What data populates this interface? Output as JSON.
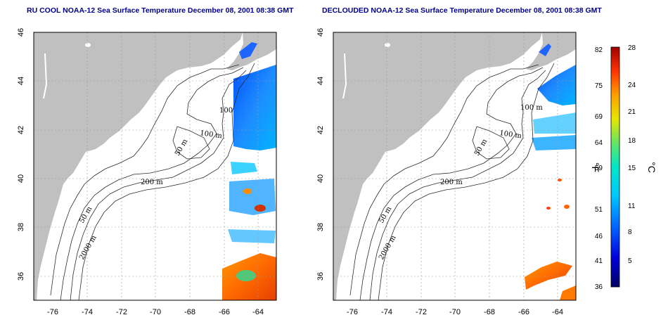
{
  "titles": {
    "left": "RU COOL NOAA-12 Sea Surface Temperature December 08, 2001 08:38 GMT",
    "right": "DECLOUDED NOAA-12 Sea Surface Temperature December 08, 2001 08:38 GMT"
  },
  "axes": {
    "x_ticks": [
      "-76",
      "-74",
      "-72",
      "-70",
      "-68",
      "-66",
      "-64"
    ],
    "y_ticks": [
      "36",
      "38",
      "40",
      "42",
      "44",
      "46"
    ]
  },
  "contour_labels": {
    "left": [
      "100",
      "100 m",
      "50 m",
      "200 m",
      "50 m",
      "2000 m"
    ],
    "right": [
      "100 m",
      "100 m",
      "50 m",
      "200 m",
      "50 m",
      "2000 m"
    ]
  },
  "colorbar": {
    "fahrenheit_ticks": [
      "82",
      "75",
      "69",
      "64",
      "59",
      "51",
      "46",
      "41",
      "36"
    ],
    "celsius_ticks": [
      "28",
      "24",
      "21",
      "18",
      "15",
      "11",
      "8",
      "5"
    ],
    "fahrenheit_unit": "°F",
    "celsius_unit": "°C"
  },
  "colors": {
    "land": "#c0c0c0",
    "ocean_bg": "#ffffff",
    "title": "#00008b",
    "cold": "#0000c8",
    "warm": "#ff8c00",
    "hot": "#b40000"
  }
}
